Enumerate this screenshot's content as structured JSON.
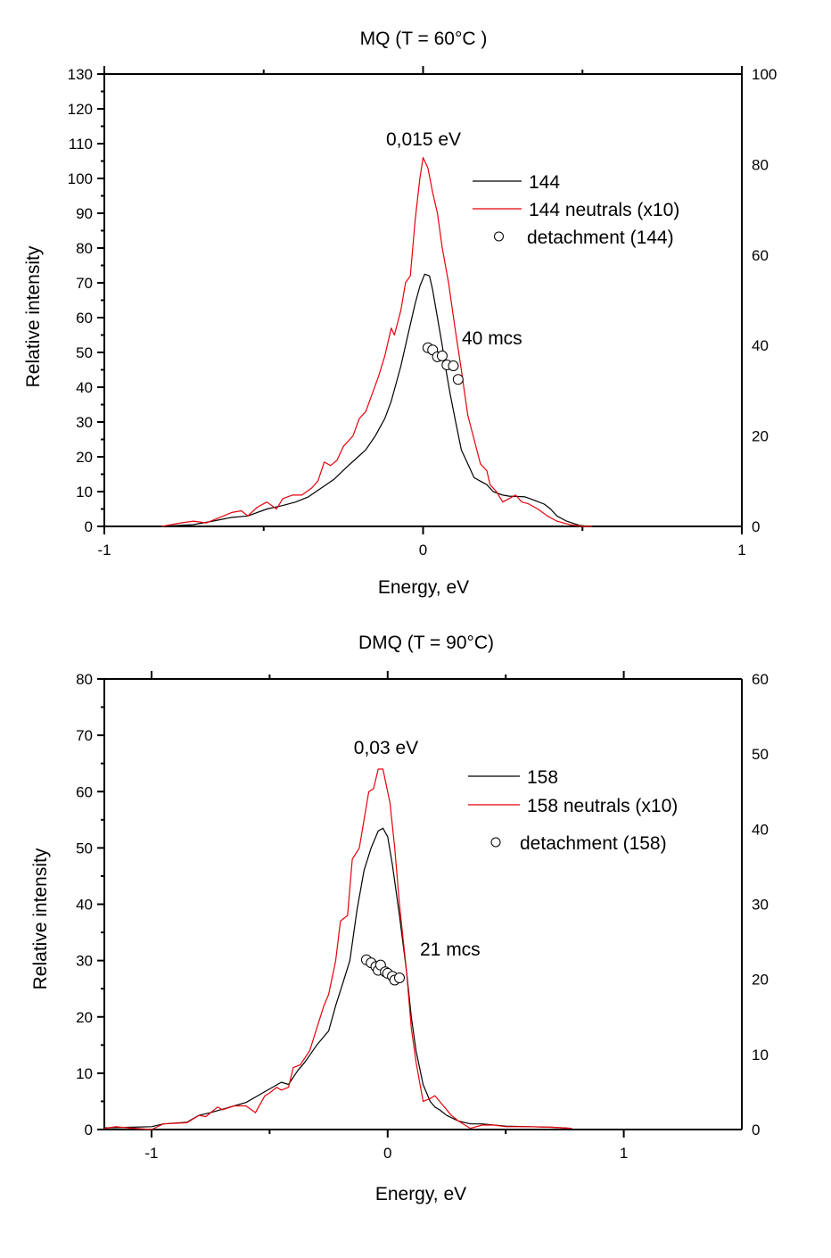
{
  "chart_data": [
    {
      "type": "line",
      "title": "MQ (T = 60°C )",
      "xlabel": "Energy, eV",
      "ylabel": "Relative intensity",
      "xlim": [
        -1,
        1
      ],
      "ylim": [
        0,
        130
      ],
      "y2lim": [
        0,
        100
      ],
      "x_ticks": [
        -1,
        0,
        1
      ],
      "x_minor_ticks": [
        -0.5,
        0.5
      ],
      "y_ticks": [
        0,
        10,
        20,
        30,
        40,
        50,
        60,
        70,
        80,
        90,
        100,
        110,
        120,
        130
      ],
      "y_minor_step": 5,
      "y2_ticks": [
        0,
        20,
        40,
        60,
        80,
        100
      ],
      "grid": false,
      "legend_position": "top-right",
      "annotations": [
        {
          "text": "0,015 eV",
          "x": 0.015,
          "y": 111
        },
        {
          "text": "40 mcs",
          "x": 0.12,
          "y": 53
        }
      ],
      "series": [
        {
          "name": "144",
          "kind": "line",
          "axis": "left",
          "color": "#000000",
          "x": [
            -0.82,
            -0.72,
            -0.66,
            -0.6,
            -0.55,
            -0.49,
            -0.44,
            -0.4,
            -0.36,
            -0.32,
            -0.28,
            -0.24,
            -0.21,
            -0.18,
            -0.15,
            -0.12,
            -0.1,
            -0.07,
            -0.05,
            -0.025,
            -0.01,
            0.005,
            0.02,
            0.03,
            0.045,
            0.06,
            0.07,
            0.085,
            0.1,
            0.12,
            0.14,
            0.16,
            0.18,
            0.2,
            0.22,
            0.25,
            0.27,
            0.3,
            0.32,
            0.35,
            0.38,
            0.4,
            0.42,
            0.45,
            0.49,
            0.52
          ],
          "y": [
            0,
            0.5,
            1.5,
            2.6,
            3,
            5,
            6,
            7,
            8.5,
            11,
            13.5,
            17,
            19.5,
            22,
            26,
            31,
            36,
            46,
            54,
            64,
            69,
            72.5,
            72,
            68,
            60,
            52,
            46,
            38,
            31,
            22,
            18,
            14,
            13,
            12,
            10,
            9,
            8.7,
            8.6,
            8.5,
            7.5,
            6.4,
            5,
            3,
            1.5,
            0.3,
            0
          ]
        },
        {
          "name": "144 neutrals (x10)",
          "kind": "line",
          "axis": "left",
          "color": "#e8000b",
          "x": [
            -0.82,
            -0.76,
            -0.72,
            -0.68,
            -0.64,
            -0.6,
            -0.57,
            -0.55,
            -0.52,
            -0.49,
            -0.46,
            -0.44,
            -0.41,
            -0.38,
            -0.35,
            -0.33,
            -0.31,
            -0.29,
            -0.27,
            -0.25,
            -0.22,
            -0.2,
            -0.18,
            -0.16,
            -0.14,
            -0.12,
            -0.1,
            -0.09,
            -0.07,
            -0.055,
            -0.04,
            -0.025,
            -0.01,
            0.0,
            0.015,
            0.03,
            0.045,
            0.06,
            0.08,
            0.1,
            0.12,
            0.14,
            0.16,
            0.18,
            0.2,
            0.21,
            0.23,
            0.25,
            0.27,
            0.29,
            0.31,
            0.33,
            0.36,
            0.39,
            0.42,
            0.46,
            0.5,
            0.53
          ],
          "y": [
            0,
            1,
            1.5,
            1,
            2.5,
            4,
            4.5,
            3,
            5.5,
            7,
            5,
            8,
            9,
            9,
            11,
            13,
            18.5,
            17.5,
            19,
            23,
            26,
            31,
            33,
            38,
            43,
            49,
            57,
            55,
            62,
            70,
            72,
            88,
            100,
            106,
            103,
            96,
            90,
            80,
            70,
            57,
            45,
            32,
            25,
            18,
            16,
            12,
            10,
            7,
            8,
            9,
            7,
            6.5,
            5,
            3,
            1.5,
            0.5,
            0,
            0
          ]
        },
        {
          "name": "detachment (144)",
          "kind": "scatter",
          "axis": "right",
          "marker": "open-circle",
          "color": "#000000",
          "x": [
            0.015,
            0.03,
            0.045,
            0.06,
            0.075,
            0.095,
            0.11
          ],
          "y": [
            39.5,
            39,
            37.5,
            37.7,
            35.7,
            35.5,
            32.5
          ]
        }
      ]
    },
    {
      "type": "line",
      "title": "DMQ (T = 90°C)",
      "xlabel": "Energy, eV",
      "ylabel": "Relative intensity",
      "xlim": [
        -1.2,
        1.5
      ],
      "ylim": [
        0,
        80
      ],
      "y2lim": [
        0,
        60
      ],
      "x_ticks": [
        -1,
        0,
        1
      ],
      "x_minor_ticks": [
        -0.5,
        0.5
      ],
      "y_ticks": [
        0,
        10,
        20,
        30,
        40,
        50,
        60,
        70,
        80
      ],
      "y_minor_step": 5,
      "y2_ticks": [
        0,
        10,
        20,
        30,
        40,
        50,
        60
      ],
      "grid": false,
      "legend_position": "top-right",
      "annotations": [
        {
          "text": "0,03 eV",
          "x": 0.0,
          "y": 67
        },
        {
          "text": "21 mcs",
          "x": 0.29,
          "y": 32
        }
      ],
      "series": [
        {
          "name": "158",
          "kind": "line",
          "axis": "left",
          "color": "#000000",
          "x": [
            -1.2,
            -1.1,
            -1.0,
            -0.95,
            -0.85,
            -0.8,
            -0.75,
            -0.7,
            -0.65,
            -0.6,
            -0.55,
            -0.5,
            -0.45,
            -0.42,
            -0.38,
            -0.35,
            -0.3,
            -0.25,
            -0.22,
            -0.19,
            -0.16,
            -0.13,
            -0.1,
            -0.07,
            -0.04,
            -0.02,
            0.0,
            0.02,
            0.05,
            0.08,
            0.1,
            0.12,
            0.15,
            0.18,
            0.2,
            0.22,
            0.25,
            0.3,
            0.35,
            0.4,
            0.5,
            0.6,
            0.7,
            0.78
          ],
          "y": [
            0.3,
            0.4,
            0.5,
            1,
            1.3,
            2.5,
            3,
            3.6,
            4.2,
            4.8,
            6,
            7.2,
            8.4,
            8,
            10.5,
            12,
            15,
            17.5,
            22,
            26,
            30,
            39,
            46,
            50,
            53,
            53.5,
            52,
            47,
            38,
            28,
            20,
            14,
            8,
            5,
            4,
            3.5,
            2.5,
            1.5,
            1,
            1,
            0.6,
            0.5,
            0.4,
            0.2
          ]
        },
        {
          "name": "158 neutrals (x10)",
          "kind": "line",
          "axis": "left",
          "color": "#e8000b",
          "x": [
            -1.2,
            -1.15,
            -1.1,
            -1.0,
            -0.95,
            -0.85,
            -0.8,
            -0.77,
            -0.72,
            -0.7,
            -0.65,
            -0.6,
            -0.56,
            -0.52,
            -0.5,
            -0.47,
            -0.45,
            -0.42,
            -0.4,
            -0.37,
            -0.33,
            -0.3,
            -0.27,
            -0.25,
            -0.22,
            -0.2,
            -0.17,
            -0.15,
            -0.12,
            -0.1,
            -0.08,
            -0.06,
            -0.04,
            -0.02,
            -0.01,
            0.01,
            0.03,
            0.05,
            0.08,
            0.1,
            0.12,
            0.15,
            0.18,
            0.2,
            0.22,
            0.24,
            0.27,
            0.3,
            0.35,
            0.4,
            0.45,
            0.5,
            0.6,
            0.7,
            0.78
          ],
          "y": [
            0.2,
            0.5,
            0.3,
            0,
            1,
            1.2,
            2.5,
            2.3,
            4,
            3.5,
            4.2,
            4.2,
            3,
            6,
            6.5,
            7.5,
            7,
            7.5,
            11,
            11.5,
            14,
            18,
            22,
            24,
            30,
            37,
            38,
            48,
            50,
            55,
            60,
            60.5,
            64,
            64,
            62,
            58,
            50,
            40,
            28,
            18,
            12,
            5,
            5.5,
            6,
            5,
            4,
            2.5,
            1.5,
            0.2,
            0.8,
            0.8,
            0.5,
            0.5,
            0.4,
            0.2
          ]
        },
        {
          "name": "detachment (158)",
          "kind": "scatter",
          "axis": "right",
          "marker": "open-circle",
          "color": "#000000",
          "x": [
            -0.09,
            -0.07,
            -0.05,
            -0.04,
            -0.03,
            -0.01,
            0.0,
            0.02,
            0.03,
            0.05
          ],
          "y": [
            22.6,
            22.2,
            21.7,
            21.2,
            21.9,
            21,
            20.8,
            20.4,
            19.9,
            20.2
          ]
        }
      ]
    }
  ]
}
